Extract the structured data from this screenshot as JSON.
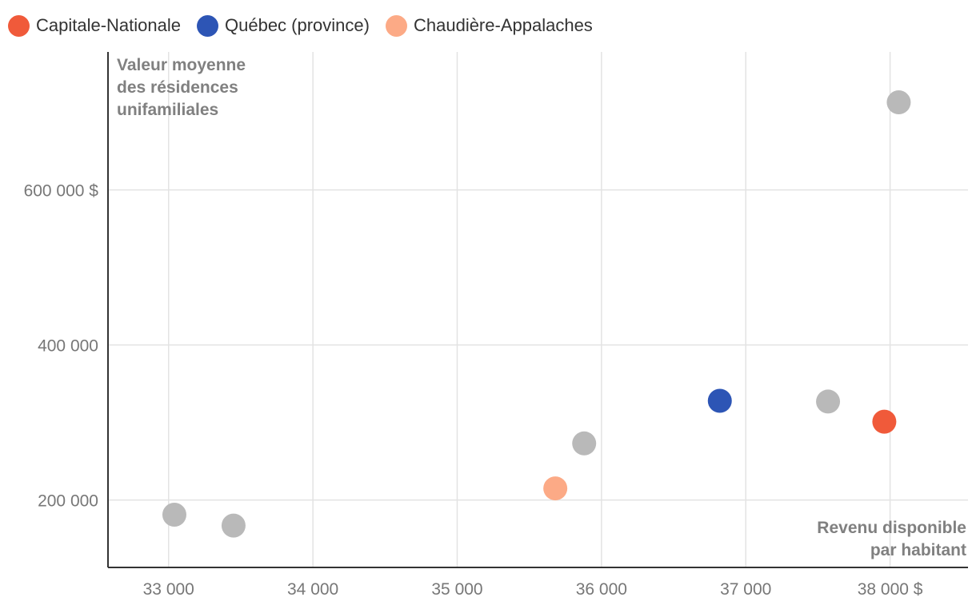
{
  "chart_data": {
    "type": "scatter",
    "xlabel": "Revenu disponible par habitant",
    "xlabel_lines": [
      "Revenu disponible",
      "par habitant"
    ],
    "ylabel": "Valeur moyenne des résidences unifamiliales",
    "ylabel_lines": [
      "Valeur moyenne",
      "des résidences",
      "unifamiliales"
    ],
    "xlim": [
      32580,
      38540
    ],
    "ylim": [
      113000,
      778000
    ],
    "x_ticks": [
      33000,
      34000,
      35000,
      36000,
      37000,
      38000
    ],
    "x_tick_labels": [
      "33 000",
      "34 000",
      "35 000",
      "36 000",
      "37 000",
      "38 000 $"
    ],
    "y_ticks": [
      200000,
      400000,
      600000
    ],
    "y_tick_labels": [
      "200 000",
      "400 000",
      "600 000 $"
    ],
    "grid": true,
    "legend_position": "top-left",
    "series": [
      {
        "name": "Capitale-Nationale",
        "color": "#f05a3a",
        "points": [
          {
            "x": 37960,
            "y": 301000
          }
        ]
      },
      {
        "name": "Québec (province)",
        "color": "#2d55b5",
        "points": [
          {
            "x": 36820,
            "y": 328000
          }
        ]
      },
      {
        "name": "Chaudière-Appalaches",
        "color": "#fcaa86",
        "points": [
          {
            "x": 35680,
            "y": 215000
          }
        ]
      },
      {
        "color": "#b9b9b9",
        "points": [
          {
            "x": 33040,
            "y": 181000
          },
          {
            "x": 33450,
            "y": 167000
          },
          {
            "x": 35880,
            "y": 273000
          },
          {
            "x": 37570,
            "y": 327000
          },
          {
            "x": 38060,
            "y": 713000
          }
        ]
      }
    ]
  }
}
